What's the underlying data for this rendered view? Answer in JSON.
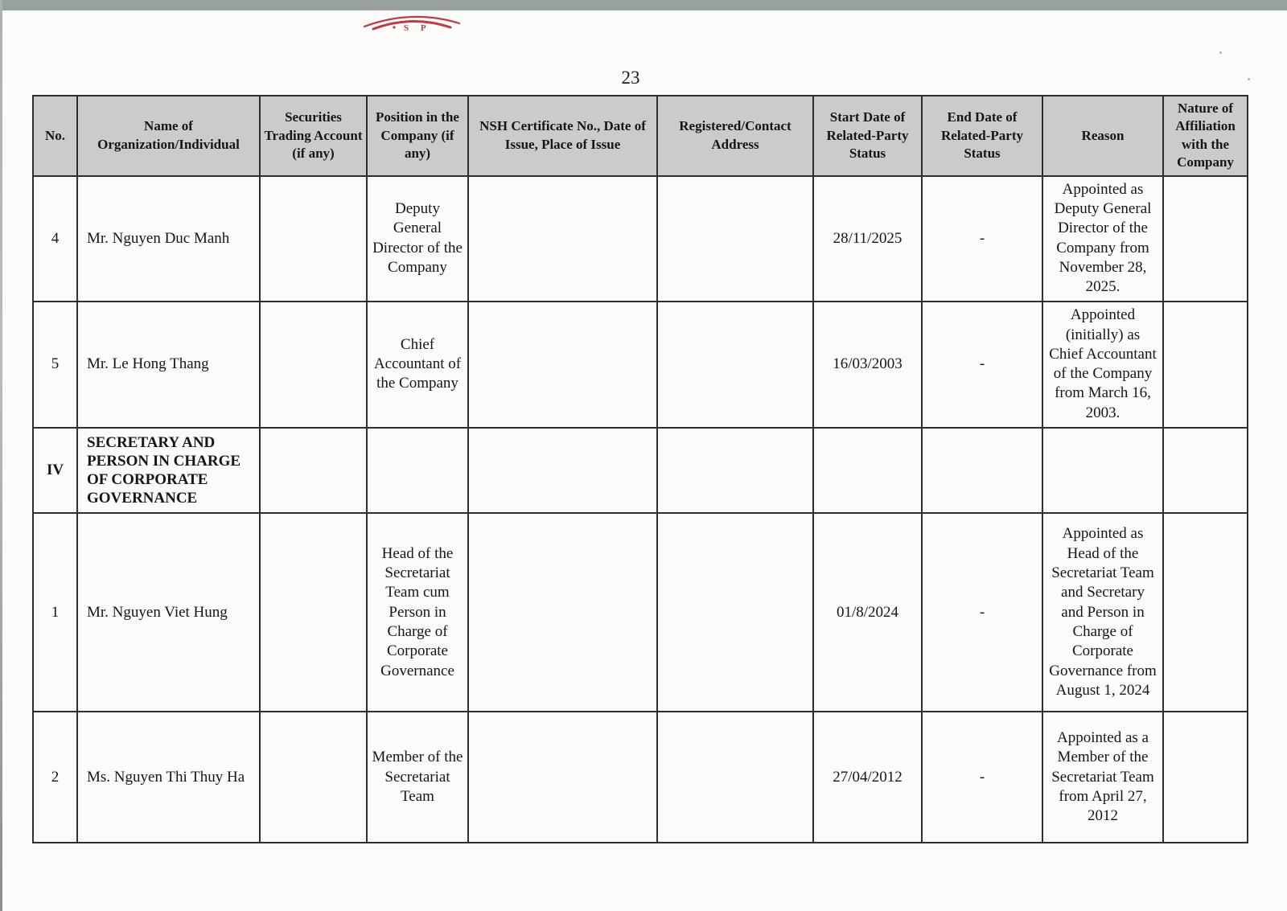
{
  "page": {
    "number": "23"
  },
  "logo": {
    "name": "red-arc-stamp",
    "color": "#c23a41",
    "letters": "S P"
  },
  "artifact_colors": {
    "top_bar": "#98a29c",
    "header_fill": "#cbcbcb",
    "border": "#2e2e2e"
  },
  "table": {
    "headers": [
      "No.",
      "Name of Organization/Individual",
      "Securities Trading Account (if any)",
      "Position in the Company (if any)",
      "NSH Certificate No., Date of Issue, Place of Issue",
      "Registered/Contact Address",
      "Start Date of Related-Party Status",
      "End Date of Related-Party Status",
      "Reason",
      "Nature of Affiliation with the Company"
    ],
    "rows": [
      {
        "section": false,
        "no": "4",
        "name": "Mr. Nguyen Duc Manh",
        "securities_account": "",
        "position": "Deputy General Director of the Company",
        "certificate": "",
        "address": "",
        "start_date": "28/11/2025",
        "end_date": "-",
        "reason": "Appointed as Deputy General Director of the Company from November 28, 2025.",
        "nature": ""
      },
      {
        "section": false,
        "no": "5",
        "name": "Mr. Le Hong Thang",
        "securities_account": "",
        "position": "Chief Accountant of the Company",
        "certificate": "",
        "address": "",
        "start_date": "16/03/2003",
        "end_date": "-",
        "reason": "Appointed (initially) as Chief Accountant of the Company from March 16, 2003.",
        "nature": ""
      },
      {
        "section": true,
        "no": "IV",
        "name": "SECRETARY AND PERSON IN CHARGE OF CORPORATE GOVERNANCE",
        "securities_account": "",
        "position": "",
        "certificate": "",
        "address": "",
        "start_date": "",
        "end_date": "",
        "reason": "",
        "nature": ""
      },
      {
        "section": false,
        "no": "1",
        "name": "Mr. Nguyen Viet Hung",
        "securities_account": "",
        "position": "Head of the Secretariat Team cum Person in Charge of Corporate Governance",
        "certificate": "",
        "address": "",
        "start_date": "01/8/2024",
        "end_date": "-",
        "reason": "Appointed as Head of the Secretariat Team and Secretary and Person in Charge of Corporate Governance from August 1, 2024",
        "nature": ""
      },
      {
        "section": false,
        "no": "2",
        "name": "Ms. Nguyen Thi Thuy Ha",
        "securities_account": "",
        "position": "Member of the Secretariat Team",
        "certificate": "",
        "address": "",
        "start_date": "27/04/2012",
        "end_date": "-",
        "reason": "Appointed as a Member of the Secretariat Team from April 27, 2012",
        "nature": ""
      }
    ]
  }
}
